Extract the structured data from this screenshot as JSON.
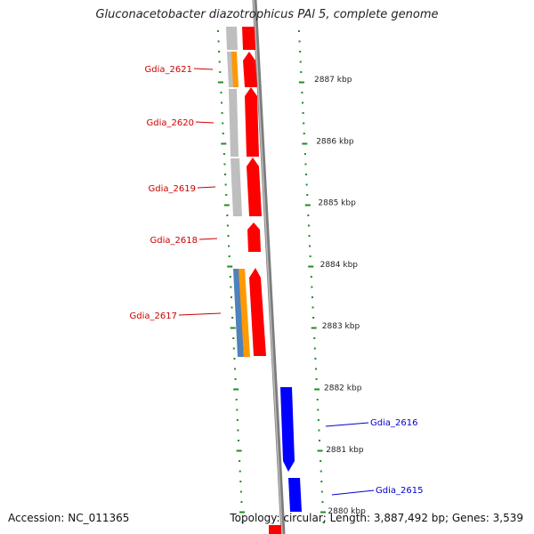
{
  "title": "Gluconacetobacter diazotrophicus PAl 5, complete genome",
  "footer": {
    "accession": "Accession: NC_011365",
    "topology": "Topology: circular; Length: 3,887,492 bp; Genes: 3,539"
  },
  "scale": {
    "unit": "kbp",
    "ticks": [
      {
        "label": "2887 kbp"
      },
      {
        "label": "2886 kbp"
      },
      {
        "label": "2885 kbp"
      },
      {
        "label": "2884 kbp"
      },
      {
        "label": "2883 kbp"
      },
      {
        "label": "2882 kbp"
      },
      {
        "label": "2881 kbp"
      },
      {
        "label": "2880 kbp"
      }
    ]
  },
  "genes": [
    {
      "label": "Gdia_2621",
      "strand": "reverse",
      "color": "#cc0000"
    },
    {
      "label": "Gdia_2620",
      "strand": "reverse",
      "color": "#cc0000"
    },
    {
      "label": "Gdia_2619",
      "strand": "reverse",
      "color": "#cc0000"
    },
    {
      "label": "Gdia_2618",
      "strand": "reverse",
      "color": "#cc0000"
    },
    {
      "label": "Gdia_2617",
      "strand": "reverse",
      "color": "#cc0000"
    },
    {
      "label": "Gdia_2616",
      "strand": "forward",
      "color": "#0000cc"
    },
    {
      "label": "Gdia_2615",
      "strand": "forward",
      "color": "#0000cc"
    }
  ],
  "colors": {
    "reverse_gene": "#ff0000",
    "forward_gene": "#0000ff",
    "feature_gray": "#c0c0c0",
    "feature_orange": "#ff9900",
    "feature_steelblue": "#4f81bd",
    "backbone": "#808080",
    "ticks": "#228b22",
    "tick_text": "#222222"
  }
}
